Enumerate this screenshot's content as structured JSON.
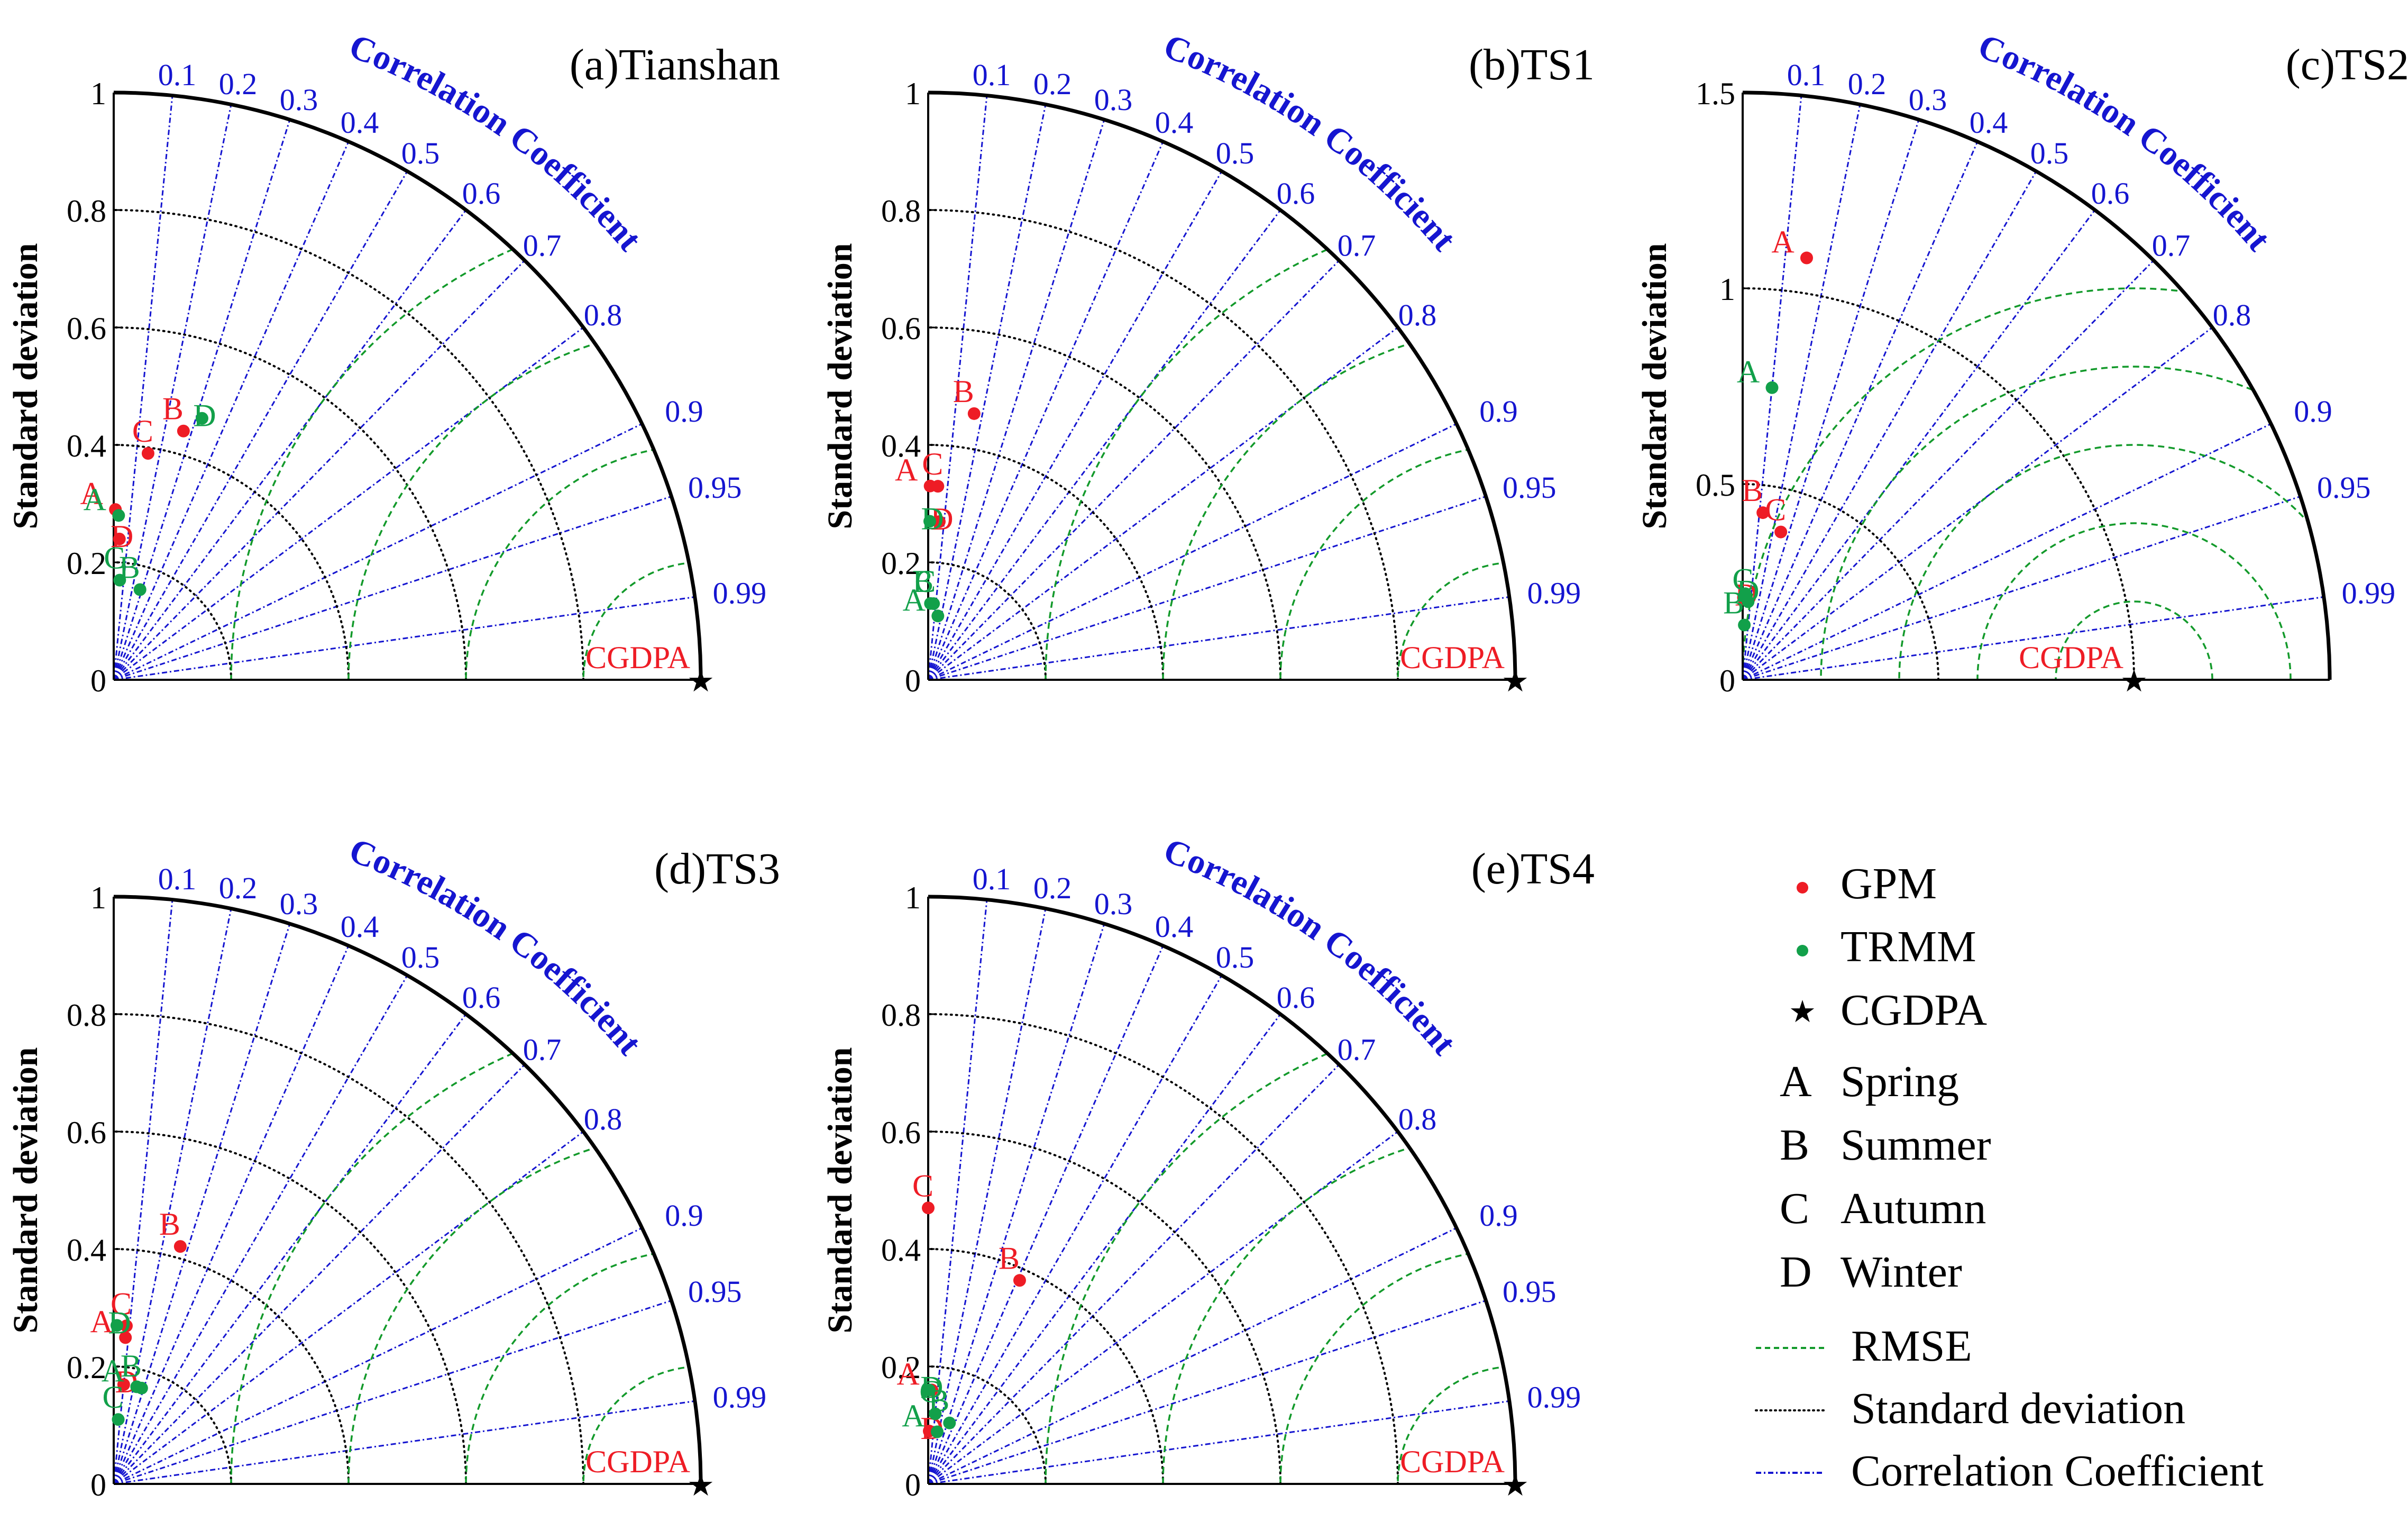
{
  "colors": {
    "gpm": "#ee1c25",
    "trmm": "#12a04a",
    "reference": "#000000",
    "correlation_lines": "#1515d0",
    "rmse_arcs": "#139a2b",
    "std_arcs": "#000000",
    "axis": "#000000"
  },
  "common": {
    "ylabel": "Standard deviation",
    "corr_title": "Correlation Coefficient",
    "corr_ticks": [
      0.1,
      0.2,
      0.3,
      0.4,
      0.5,
      0.6,
      0.7,
      0.8,
      0.9,
      0.95,
      0.99
    ],
    "reference_label": "CGDPA"
  },
  "legend": {
    "series": [
      {
        "key": "gpm",
        "label": "GPM",
        "marker": "dot"
      },
      {
        "key": "trmm",
        "label": "TRMM",
        "marker": "dot"
      },
      {
        "key": "reference",
        "label": "CGDPA",
        "marker": "star"
      }
    ],
    "seasons": [
      {
        "letter": "A",
        "label": "Spring"
      },
      {
        "letter": "B",
        "label": "Summer"
      },
      {
        "letter": "C",
        "label": "Autumn"
      },
      {
        "letter": "D",
        "label": "Winter"
      }
    ],
    "lines": [
      {
        "key": "rmse",
        "label": "RMSE"
      },
      {
        "key": "std",
        "label": "Standard deviation"
      },
      {
        "key": "corr",
        "label": "Correlation Coefficient"
      }
    ]
  },
  "chart_data": [
    {
      "type": "taylor",
      "title": "(a)Tianshan",
      "ylim": [
        0,
        1
      ],
      "y_ticks": [
        "0",
        "0.2",
        "0.4",
        "0.6",
        "0.8",
        "1"
      ],
      "tick_values": [
        0,
        0.2,
        0.4,
        0.6,
        0.8,
        1
      ],
      "std_arcs": [
        0.2,
        0.4,
        0.6,
        0.8
      ],
      "rmse_arcs": [
        0.2,
        0.4,
        0.6,
        0.8
      ],
      "reference_std": 1.0,
      "points": [
        {
          "series": "gpm",
          "label": "A",
          "std": 0.29,
          "corr": 0.01
        },
        {
          "series": "gpm",
          "label": "B",
          "std": 0.44,
          "corr": 0.27
        },
        {
          "series": "gpm",
          "label": "C",
          "std": 0.39,
          "corr": 0.15
        },
        {
          "series": "gpm",
          "label": "D",
          "std": 0.24,
          "corr": 0.04
        },
        {
          "series": "trmm",
          "label": "A",
          "std": 0.28,
          "corr": 0.03
        },
        {
          "series": "trmm",
          "label": "B",
          "std": 0.16,
          "corr": 0.28
        },
        {
          "series": "trmm",
          "label": "C",
          "std": 0.17,
          "corr": 0.06
        },
        {
          "series": "trmm",
          "label": "D",
          "std": 0.47,
          "corr": 0.32
        }
      ]
    },
    {
      "type": "taylor",
      "title": "(b)TS1",
      "ylim": [
        0,
        1
      ],
      "y_ticks": [
        "0",
        "0.2",
        "0.4",
        "0.6",
        "0.8",
        "1"
      ],
      "tick_values": [
        0,
        0.2,
        0.4,
        0.6,
        0.8,
        1
      ],
      "std_arcs": [
        0.2,
        0.4,
        0.6,
        0.8
      ],
      "rmse_arcs": [
        0.2,
        0.4,
        0.6,
        0.8
      ],
      "reference_std": 1.0,
      "points": [
        {
          "series": "gpm",
          "label": "A",
          "std": 0.33,
          "corr": 0.01
        },
        {
          "series": "gpm",
          "label": "B",
          "std": 0.46,
          "corr": 0.17
        },
        {
          "series": "gpm",
          "label": "C",
          "std": 0.33,
          "corr": 0.05
        },
        {
          "series": "gpm",
          "label": "D",
          "std": 0.27,
          "corr": 0.07
        },
        {
          "series": "trmm",
          "label": "A",
          "std": 0.11,
          "corr": 0.15
        },
        {
          "series": "trmm",
          "label": "B",
          "std": 0.13,
          "corr": 0.07
        },
        {
          "series": "trmm",
          "label": "C",
          "std": 0.13,
          "corr": 0.03
        },
        {
          "series": "trmm",
          "label": "D",
          "std": 0.27,
          "corr": 0.01
        }
      ]
    },
    {
      "type": "taylor",
      "title": "(c)TS2",
      "ylim": [
        0,
        1.5
      ],
      "y_ticks": [
        "0",
        "0.5",
        "1",
        "1.5"
      ],
      "tick_values": [
        0,
        0.5,
        1,
        1.5
      ],
      "std_arcs": [
        0.5,
        1.0
      ],
      "rmse_arcs": [
        0.2,
        0.4,
        0.6,
        0.8,
        1.0
      ],
      "reference_std": 1.0,
      "points": [
        {
          "series": "gpm",
          "label": "A",
          "std": 1.09,
          "corr": 0.15
        },
        {
          "series": "gpm",
          "label": "B",
          "std": 0.43,
          "corr": 0.12
        },
        {
          "series": "gpm",
          "label": "C",
          "std": 0.39,
          "corr": 0.25
        },
        {
          "series": "gpm",
          "label": "D",
          "std": 0.21,
          "corr": 0.01
        },
        {
          "series": "trmm",
          "label": "A",
          "std": 0.75,
          "corr": 0.1
        },
        {
          "series": "trmm",
          "label": "B",
          "std": 0.14,
          "corr": 0.03
        },
        {
          "series": "trmm",
          "label": "C",
          "std": 0.2,
          "corr": 0.07
        },
        {
          "series": "trmm",
          "label": "D",
          "std": 0.22,
          "corr": 0.03
        }
      ]
    },
    {
      "type": "taylor",
      "title": "(d)TS3",
      "ylim": [
        0,
        1
      ],
      "y_ticks": [
        "0",
        "0.2",
        "0.4",
        "0.6",
        "0.8",
        "1"
      ],
      "tick_values": [
        0,
        0.2,
        0.4,
        0.6,
        0.8,
        1
      ],
      "std_arcs": [
        0.2,
        0.4,
        0.6,
        0.8
      ],
      "rmse_arcs": [
        0.2,
        0.4,
        0.6,
        0.8
      ],
      "reference_std": 1.0,
      "points": [
        {
          "series": "gpm",
          "label": "A",
          "std": 0.25,
          "corr": 0.08
        },
        {
          "series": "gpm",
          "label": "B",
          "std": 0.42,
          "corr": 0.27
        },
        {
          "series": "gpm",
          "label": "C",
          "std": 0.27,
          "corr": 0.08
        },
        {
          "series": "gpm",
          "label": "D",
          "std": 0.17,
          "corr": 0.1
        },
        {
          "series": "trmm",
          "label": "A",
          "std": 0.17,
          "corr": 0.23
        },
        {
          "series": "trmm",
          "label": "B",
          "std": 0.17,
          "corr": 0.28
        },
        {
          "series": "trmm",
          "label": "C",
          "std": 0.11,
          "corr": 0.07
        },
        {
          "series": "trmm",
          "label": "D",
          "std": 0.27,
          "corr": 0.02
        }
      ]
    },
    {
      "type": "taylor",
      "title": "(e)TS4",
      "ylim": [
        0,
        1
      ],
      "y_ticks": [
        "0",
        "0.2",
        "0.4",
        "0.6",
        "0.8",
        "1"
      ],
      "tick_values": [
        0,
        0.2,
        0.4,
        0.6,
        0.8,
        1
      ],
      "std_arcs": [
        0.2,
        0.4,
        0.6,
        0.8
      ],
      "rmse_arcs": [
        0.2,
        0.4,
        0.6,
        0.8
      ],
      "reference_std": 1.0,
      "points": [
        {
          "series": "gpm",
          "label": "A",
          "std": 0.16,
          "corr": 0.04
        },
        {
          "series": "gpm",
          "label": "B",
          "std": 0.38,
          "corr": 0.41
        },
        {
          "series": "gpm",
          "label": "C",
          "std": 0.47,
          "corr": 0.0
        },
        {
          "series": "gpm",
          "label": "D",
          "std": 0.09,
          "corr": 0.02
        },
        {
          "series": "trmm",
          "label": "A",
          "std": 0.09,
          "corr": 0.17
        },
        {
          "series": "trmm",
          "label": "B",
          "std": 0.11,
          "corr": 0.33
        },
        {
          "series": "trmm",
          "label": "C",
          "std": 0.12,
          "corr": 0.1
        },
        {
          "series": "trmm",
          "label": "D",
          "std": 0.16,
          "corr": 0.01
        }
      ]
    }
  ]
}
